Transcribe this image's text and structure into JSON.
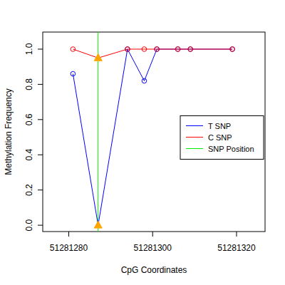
{
  "chart_data": {
    "type": "line",
    "x_label": "CpG Coordinates",
    "y_label": "Methylation Frequency",
    "x": [
      51281281,
      51281287,
      51281294,
      51281298,
      51281301,
      51281306,
      51281309,
      51281319
    ],
    "series": [
      {
        "name": "T SNP",
        "color": "#0000ff",
        "marker": "circle",
        "line_style": "solid",
        "values": [
          0.86,
          0.0,
          1.0,
          0.82,
          1.0,
          1.0,
          1.0,
          1.0
        ]
      },
      {
        "name": "C SNP",
        "color": "#ff0000",
        "marker": "circle",
        "line_style": "solid",
        "values": [
          1.0,
          0.95,
          1.0,
          1.0,
          1.0,
          1.0,
          1.0,
          1.0
        ]
      }
    ],
    "snp_position": 51281287,
    "snp_name": "SNP Position",
    "snp_color": "#00ee00",
    "xlim": [
      51281273.8,
      51281326.8
    ],
    "ylim": [
      -0.036,
      1.097
    ],
    "xticks": [
      51281280,
      51281300,
      51281320
    ],
    "yticks": [
      {
        "value": 0,
        "label": "0.0"
      },
      0.2,
      0.4,
      0.6,
      0.8,
      {
        "value": 1,
        "label": "1.0"
      }
    ],
    "legend": "right",
    "grid": false
  }
}
